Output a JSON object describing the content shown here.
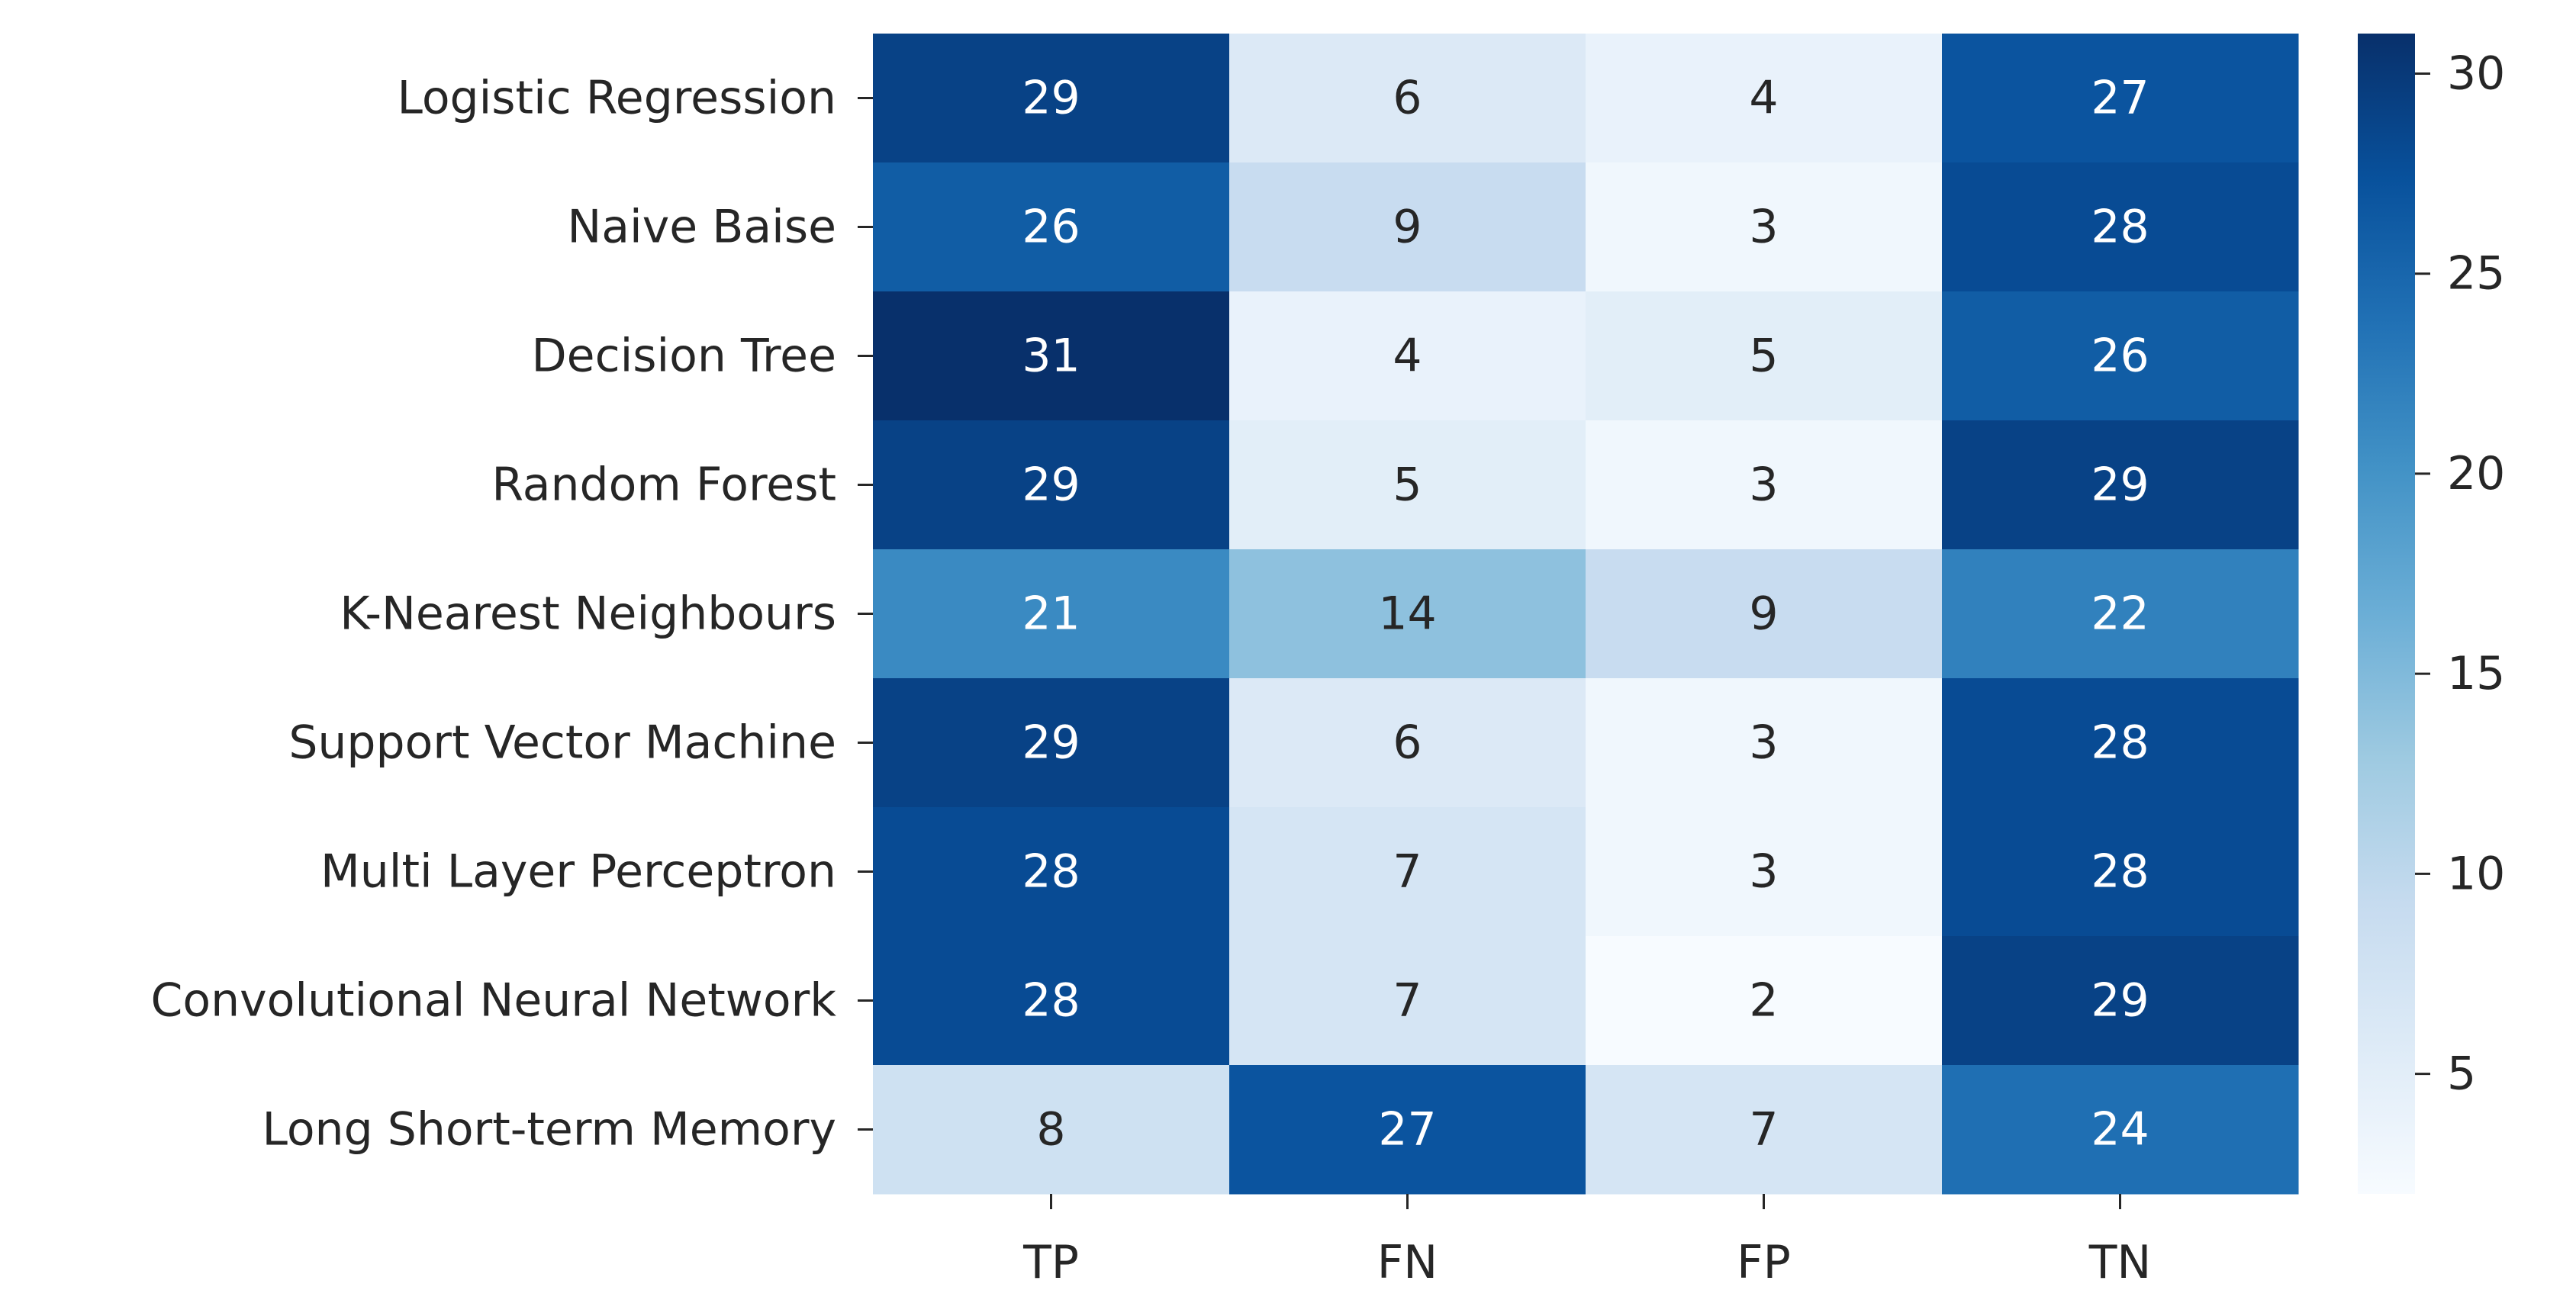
{
  "chart_data": {
    "type": "heatmap",
    "title": "",
    "xlabel": "",
    "ylabel": "",
    "columns": [
      "TP",
      "FN",
      "FP",
      "TN"
    ],
    "rows": [
      "Logistic Regression",
      "Naive Baise",
      "Decision Tree",
      "Random Forest",
      "K-Nearest Neighbours",
      "Support Vector Machine",
      "Multi Layer Perceptron",
      "Convolutional Neural Network",
      "Long Short-term Memory"
    ],
    "values": [
      [
        29,
        6,
        4,
        27
      ],
      [
        26,
        9,
        3,
        28
      ],
      [
        31,
        4,
        5,
        26
      ],
      [
        29,
        5,
        3,
        29
      ],
      [
        21,
        14,
        9,
        22
      ],
      [
        29,
        6,
        3,
        28
      ],
      [
        28,
        7,
        3,
        28
      ],
      [
        28,
        7,
        2,
        29
      ],
      [
        8,
        27,
        7,
        24
      ]
    ],
    "colormap": "Blues",
    "color_range": [
      2,
      31
    ],
    "colorbar_ticks": [
      5,
      10,
      15,
      20,
      25,
      30
    ],
    "grid": false,
    "colorbar_position": "right"
  }
}
